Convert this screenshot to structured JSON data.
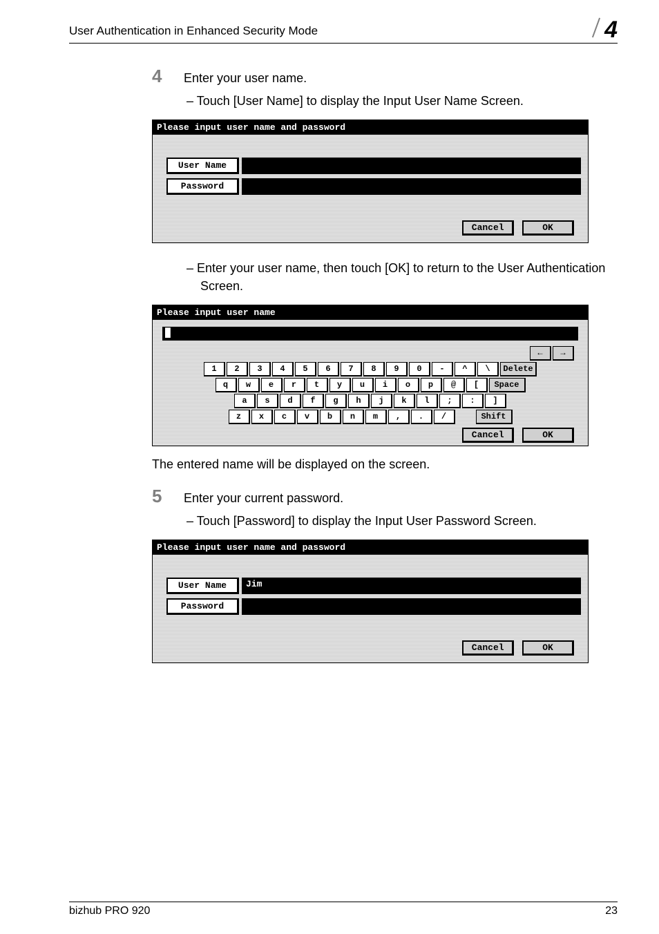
{
  "header": {
    "title": "User Authentication in Enhanced Security Mode",
    "chapter": "4"
  },
  "step4": {
    "num": "4",
    "text": "Enter your user name.",
    "sub1": "Touch [User Name] to display the Input User Name Screen."
  },
  "screen1": {
    "title": "Please input user name and password",
    "username_btn": "User Name",
    "username_val": "",
    "password_btn": "Password",
    "password_val": "",
    "cancel": "Cancel",
    "ok": "OK"
  },
  "step4b": {
    "sub": "Enter your user name, then touch [OK] to return to the User Authentication Screen."
  },
  "screen2": {
    "title": "Please input user name",
    "arrows": {
      "left": "←",
      "right": "→"
    },
    "row1": [
      "1",
      "2",
      "3",
      "4",
      "5",
      "6",
      "7",
      "8",
      "9",
      "0",
      "-",
      "^",
      "\\"
    ],
    "row1_end": "Delete",
    "row2": [
      "q",
      "w",
      "e",
      "r",
      "t",
      "y",
      "u",
      "i",
      "o",
      "p",
      "@",
      "["
    ],
    "row2_end": "Space",
    "row3": [
      "a",
      "s",
      "d",
      "f",
      "g",
      "h",
      "j",
      "k",
      "l",
      ";",
      ":",
      "]"
    ],
    "row4": [
      "z",
      "x",
      "c",
      "v",
      "b",
      "n",
      "m",
      ",",
      ".",
      "/"
    ],
    "row4_end": "Shift",
    "cancel": "Cancel",
    "ok": "OK"
  },
  "note1": "The entered name will be displayed on the screen.",
  "step5": {
    "num": "5",
    "text": "Enter your current password.",
    "sub1": "Touch [Password] to display the Input User Password Screen."
  },
  "screen3": {
    "title": "Please input user name and password",
    "username_btn": "User Name",
    "username_val": "Jim",
    "password_btn": "Password",
    "password_val": "",
    "cancel": "Cancel",
    "ok": "OK"
  },
  "footer": {
    "product": "bizhub PRO 920",
    "page": "23"
  }
}
